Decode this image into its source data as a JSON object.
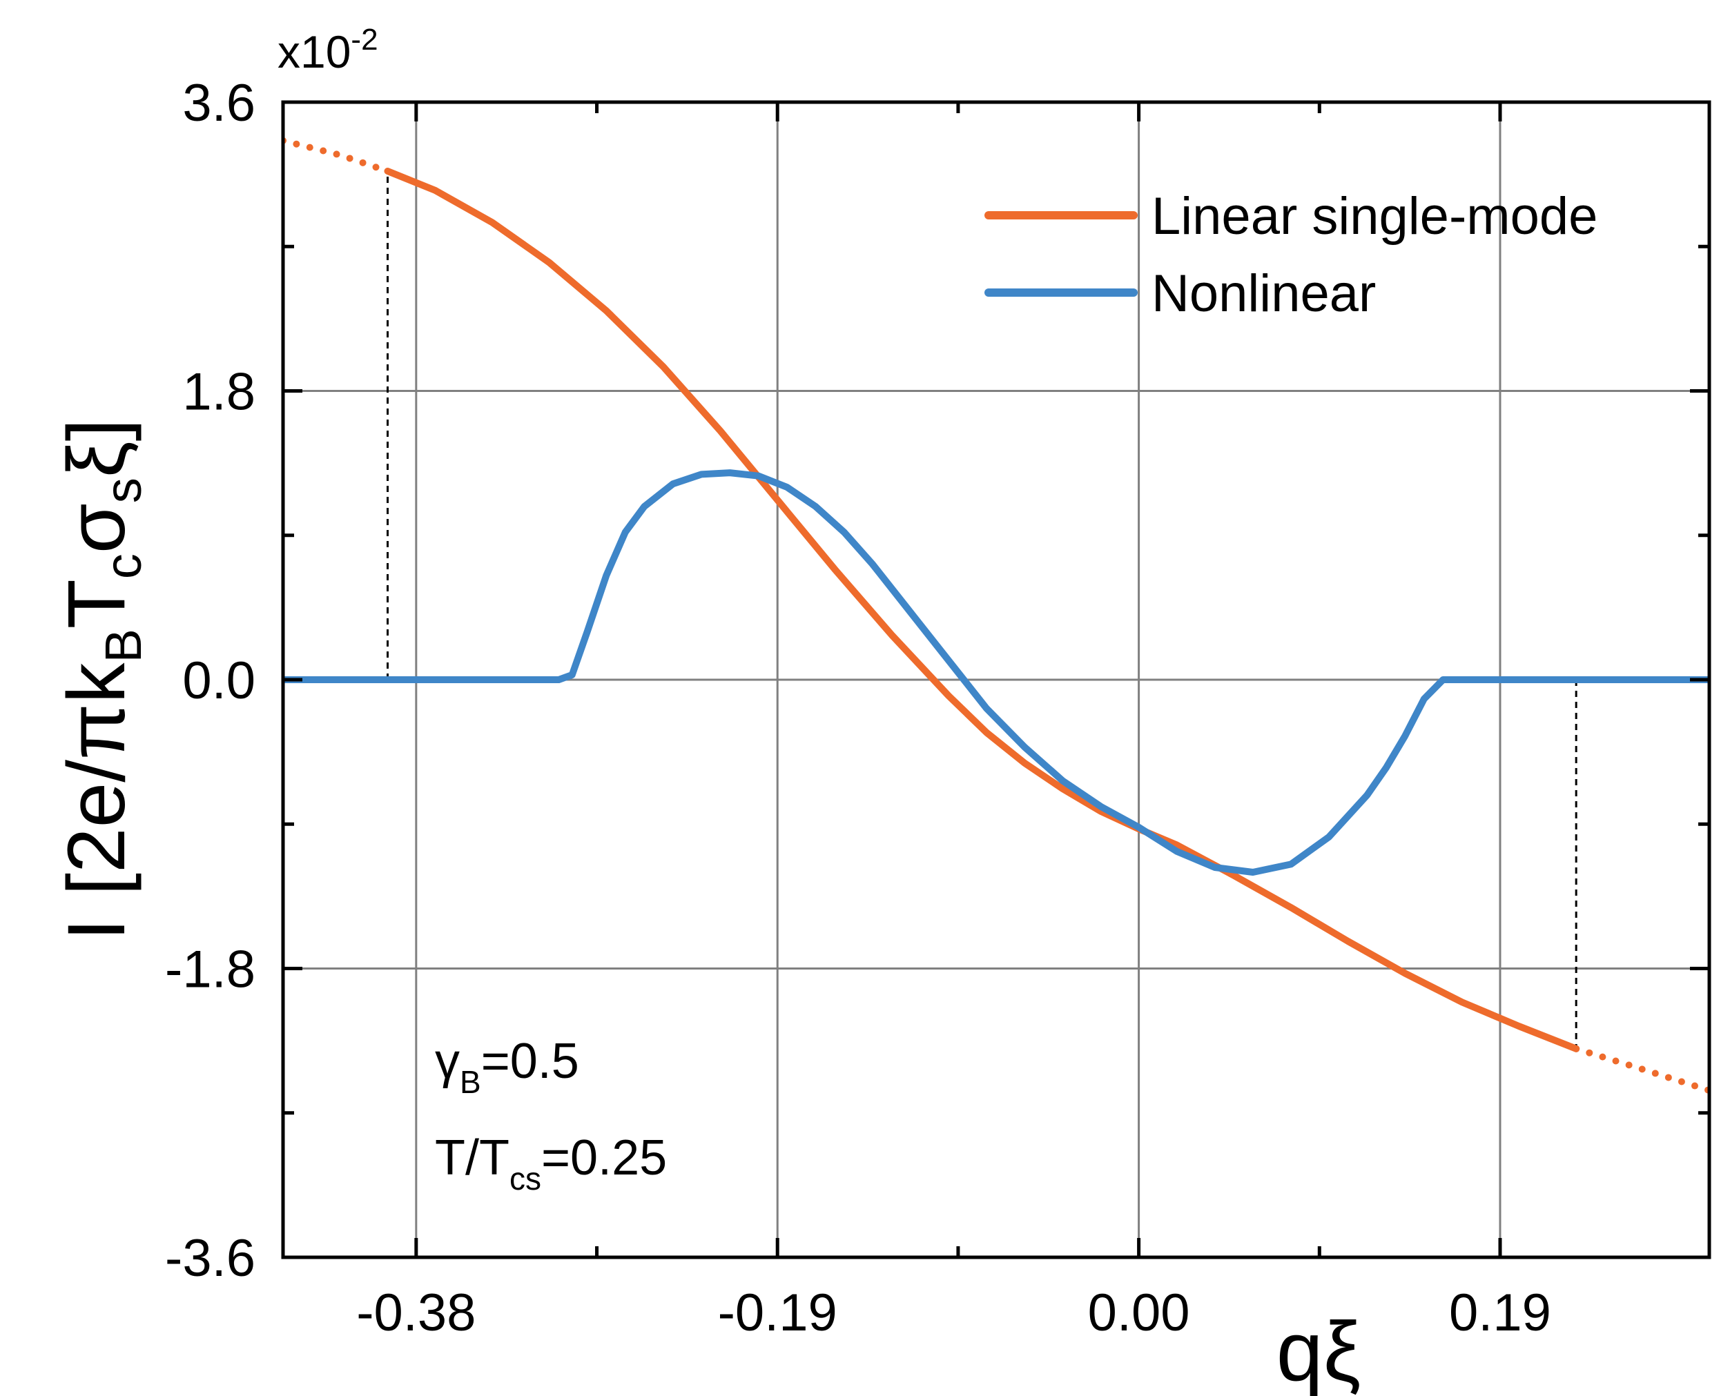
{
  "chart_data": {
    "type": "line",
    "x_label": "qξ",
    "y_label_parts": [
      "I [2e/πk",
      "B",
      "T",
      "c",
      "σ",
      "s",
      "ξ]"
    ],
    "y_multiplier": {
      "base": "x10",
      "exp": "-2"
    },
    "xlim": [
      -0.45,
      0.3
    ],
    "ylim": [
      -3.6,
      3.6
    ],
    "x_ticks": [
      -0.38,
      -0.19,
      0.0,
      0.19
    ],
    "x_tick_labels": [
      "-0.38",
      "-0.19",
      "0.00",
      "0.19"
    ],
    "x_minor_ticks": [
      -0.285,
      -0.095,
      0.095
    ],
    "y_ticks": [
      -3.6,
      -1.8,
      0.0,
      1.8,
      3.6
    ],
    "y_tick_labels": [
      "-3.6",
      "-1.8",
      "0.0",
      "1.8",
      "3.6"
    ],
    "y_minor_ticks": [
      -2.7,
      -0.9,
      0.9,
      2.7
    ],
    "grid": true,
    "legend_position": "top-right",
    "series": [
      {
        "name": "Linear single-mode",
        "color": "#ee6b2c",
        "solid_range": [
          -0.395,
          0.23
        ],
        "x": [
          -0.45,
          -0.42,
          -0.395,
          -0.37,
          -0.34,
          -0.31,
          -0.28,
          -0.25,
          -0.22,
          -0.19,
          -0.16,
          -0.13,
          -0.1,
          -0.08,
          -0.06,
          -0.04,
          -0.02,
          0.0,
          0.02,
          0.05,
          0.08,
          0.11,
          0.14,
          0.17,
          0.2,
          0.23,
          0.26,
          0.3
        ],
        "y": [
          3.36,
          3.27,
          3.17,
          3.05,
          2.85,
          2.6,
          2.3,
          1.95,
          1.55,
          1.12,
          0.69,
          0.28,
          -0.1,
          -0.33,
          -0.52,
          -0.68,
          -0.82,
          -0.93,
          -1.03,
          -1.22,
          -1.42,
          -1.63,
          -1.83,
          -2.01,
          -2.16,
          -2.3,
          -2.41,
          -2.56
        ]
      },
      {
        "name": "Nonlinear",
        "color": "#3f86c8",
        "x": [
          -0.45,
          -0.305,
          -0.298,
          -0.29,
          -0.28,
          -0.27,
          -0.26,
          -0.245,
          -0.23,
          -0.215,
          -0.2,
          -0.185,
          -0.17,
          -0.155,
          -0.14,
          -0.12,
          -0.1,
          -0.08,
          -0.06,
          -0.04,
          -0.02,
          0.0,
          0.02,
          0.04,
          0.06,
          0.08,
          0.1,
          0.12,
          0.13,
          0.14,
          0.15,
          0.16,
          0.163,
          0.3
        ],
        "y": [
          0.0,
          0.0,
          0.03,
          0.3,
          0.65,
          0.92,
          1.08,
          1.22,
          1.28,
          1.29,
          1.27,
          1.2,
          1.08,
          0.92,
          0.72,
          0.42,
          0.12,
          -0.18,
          -0.42,
          -0.63,
          -0.79,
          -0.92,
          -1.07,
          -1.17,
          -1.2,
          -1.15,
          -0.98,
          -0.72,
          -0.55,
          -0.35,
          -0.12,
          0.0,
          0.0,
          0.0
        ]
      }
    ],
    "dashed_markers": [
      {
        "x": -0.395,
        "y_from": 0.0,
        "y_to": 3.17
      },
      {
        "x": 0.23,
        "y_from": 0.0,
        "y_to": -2.3
      }
    ],
    "annotations": {
      "gamma_symbol": "γ",
      "gamma_sub": "B",
      "gamma_value": "=0.5",
      "temp_prefix": "T/T",
      "temp_sub": "cs",
      "temp_value": "=0.25"
    }
  }
}
